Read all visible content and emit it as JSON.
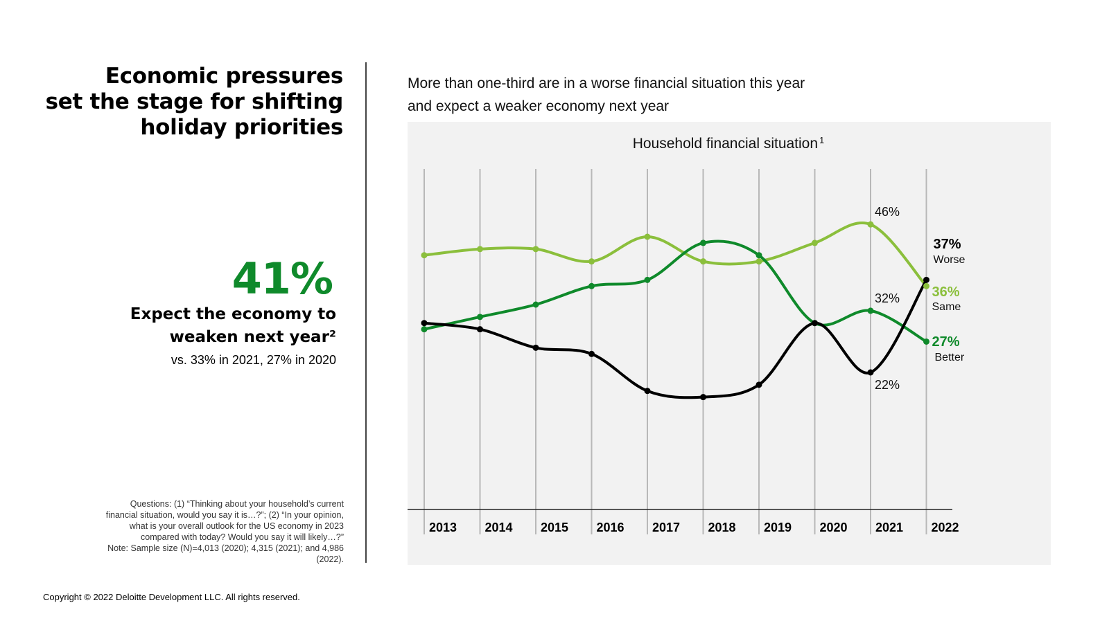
{
  "headline": {
    "lines": [
      "Economic pressures",
      "set the stage for shifting",
      "holiday priorities"
    ]
  },
  "stat": {
    "value": "41%",
    "label_lines": [
      "Expect the economy to",
      "weaken next year²"
    ],
    "comparison": "vs. 33% in 2021, 27% in 2020"
  },
  "questions": {
    "lines": [
      "Questions: (1) “Thinking about your household’s current",
      "financial situation, would you say it is…?”; (2) “In your opinion,",
      "what is your overall outlook for the US economy in 2023",
      "compared with today? Would you say it will likely…?”",
      "Note: Sample size (N)=4,013 (2020); 4,315 (2021); and 4,986",
      "(2022)."
    ]
  },
  "copyright": "Copyright © 2022 Deloitte Development LLC. All rights reserved.",
  "chart_heading": {
    "lines": [
      "More than one-third are in a worse financial situation this year",
      "and expect a weaker economy next year"
    ]
  },
  "colors": {
    "same": "#8bbf3c",
    "better": "#0f8a2b",
    "worse": "#000000",
    "panel": "#f2f2f2",
    "gridline": "#b8b8b8"
  },
  "chart_data": {
    "type": "line",
    "title": "Household financial situation",
    "title_superscript": "1",
    "x": [
      "2013",
      "2014",
      "2015",
      "2016",
      "2017",
      "2018",
      "2019",
      "2020",
      "2021",
      "2022"
    ],
    "ylim": [
      0,
      55
    ],
    "grid": "vertical",
    "series": [
      {
        "key": "same",
        "name": "Same",
        "values": [
          41,
          42,
          42,
          40,
          44,
          40,
          40,
          43,
          46,
          36
        ],
        "end_label": "36%",
        "point_labels": [
          {
            "index": 8,
            "text": "46%",
            "position": "above"
          }
        ]
      },
      {
        "key": "better",
        "name": "Better",
        "values": [
          29,
          31,
          33,
          36,
          37,
          43,
          41,
          30,
          32,
          27
        ],
        "end_label": "27%",
        "point_labels": [
          {
            "index": 8,
            "text": "32%",
            "position": "above"
          }
        ]
      },
      {
        "key": "worse",
        "name": "Worse",
        "values": [
          30,
          29,
          26,
          25,
          19,
          18,
          20,
          30,
          22,
          37
        ],
        "end_label": "37%",
        "point_labels": [
          {
            "index": 8,
            "text": "22%",
            "position": "below"
          }
        ]
      }
    ]
  }
}
